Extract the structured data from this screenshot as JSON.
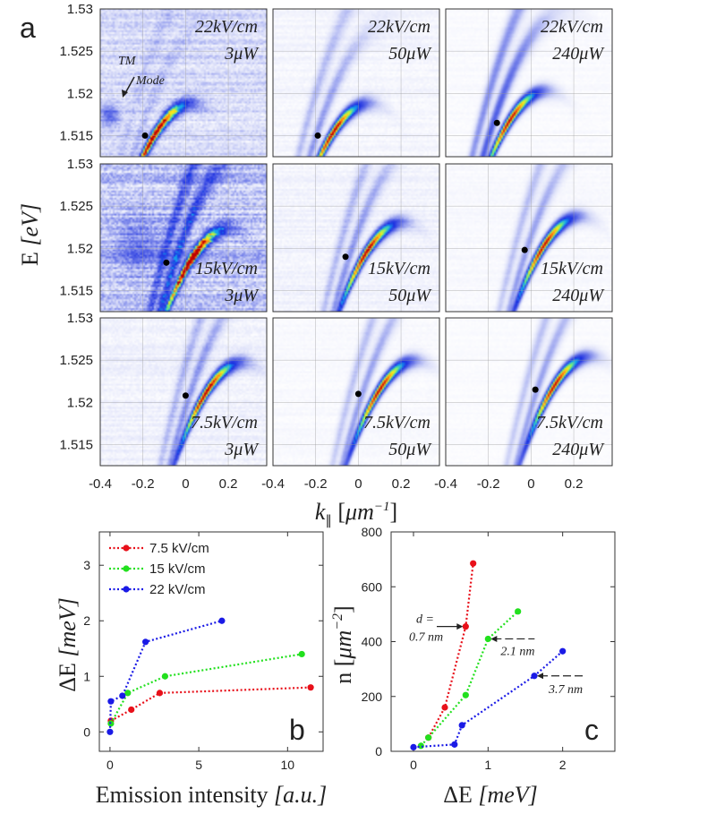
{
  "figure": {
    "panel_a_letter": "a",
    "panel_b_letter": "b",
    "panel_c_letter": "c"
  },
  "chart_data": [
    {
      "type": "heatmap",
      "panel": "a",
      "description_title": "Polariton dispersion images",
      "xlabel": "k_∥ [μm^-1]",
      "xlabel_main": "k",
      "xlabel_sub": "∥",
      "xlabel_unit_open": " [",
      "xlabel_unit": "μm",
      "xlabel_exp": "−1",
      "xlabel_unit_close": "]",
      "ylabel": "E [eV]",
      "ylabel_main": "E ",
      "ylabel_unit": "[eV]",
      "xlim": [
        -0.4,
        0.38
      ],
      "x_ticks": [
        "-0.4",
        "-0.2",
        "0",
        "0.2"
      ],
      "x_tick_values": [
        -0.4,
        -0.2,
        0,
        0.2
      ],
      "rows": [
        {
          "field": "22kV/cm",
          "ylim": [
            1.5125,
            1.53
          ],
          "y_ticks": [
            "1.53",
            "1.525",
            "1.52",
            "1.515"
          ],
          "y_tick_values": [
            1.53,
            1.525,
            1.52,
            1.515
          ],
          "panels": [
            {
              "power": "3μW",
              "marker_k": -0.19,
              "marker_E": 1.515,
              "k0": -0.12,
              "E0": 1.516
            },
            {
              "power": "50μW",
              "marker_k": -0.19,
              "marker_E": 1.515,
              "k0": -0.1,
              "E0": 1.516
            },
            {
              "power": "240μW",
              "marker_k": -0.16,
              "marker_E": 1.5165,
              "k0": -0.08,
              "E0": 1.5175
            }
          ]
        },
        {
          "field": "15kV/cm",
          "ylim": [
            1.5125,
            1.53
          ],
          "y_ticks": [
            "1.53",
            "1.525",
            "1.52",
            "1.515"
          ],
          "y_tick_values": [
            1.53,
            1.525,
            1.52,
            1.515
          ],
          "panels": [
            {
              "power": "3μW",
              "marker_k": -0.09,
              "marker_E": 1.5183,
              "k0": 0.05,
              "E0": 1.5195
            },
            {
              "power": "50μW",
              "marker_k": -0.06,
              "marker_E": 1.519,
              "k0": 0.06,
              "E0": 1.5203
            },
            {
              "power": "240μW",
              "marker_k": -0.03,
              "marker_E": 1.5198,
              "k0": 0.08,
              "E0": 1.521
            }
          ]
        },
        {
          "field": "7.5kV/cm",
          "ylim": [
            1.5125,
            1.53
          ],
          "y_ticks": [
            "1.53",
            "1.525",
            "1.52",
            "1.515"
          ],
          "y_tick_values": [
            1.53,
            1.525,
            1.52,
            1.515
          ],
          "panels": [
            {
              "power": "3μW",
              "marker_k": 0.0,
              "marker_E": 1.5208,
              "k0": 0.12,
              "E0": 1.522
            },
            {
              "power": "50μW",
              "marker_k": 0.0,
              "marker_E": 1.521,
              "k0": 0.12,
              "E0": 1.5222
            },
            {
              "power": "240μW",
              "marker_k": 0.02,
              "marker_E": 1.5215,
              "k0": 0.13,
              "E0": 1.5227
            }
          ]
        }
      ],
      "annotation": {
        "line1": "TM",
        "line2": "Mode"
      }
    },
    {
      "type": "line",
      "panel": "b",
      "xlabel": "Emission intensity [a.u.]",
      "xlabel_main": "Emission intensity ",
      "xlabel_unit": "[a.u.]",
      "ylabel": "ΔE [meV]",
      "ylabel_main": "ΔE ",
      "ylabel_unit": "[meV]",
      "xlim": [
        -0.6,
        12
      ],
      "ylim": [
        -0.35,
        3.6
      ],
      "x_ticks": [
        "0",
        "5",
        "10"
      ],
      "x_tick_values": [
        0,
        5,
        10
      ],
      "y_ticks": [
        "0",
        "1",
        "2",
        "3"
      ],
      "y_tick_values": [
        0,
        1,
        2,
        3
      ],
      "legend_position": "top-left",
      "series": [
        {
          "name": "7.5 kV/cm",
          "color": "#e8101a",
          "x": [
            0.05,
            1.2,
            2.8,
            11.3
          ],
          "y": [
            0.2,
            0.4,
            0.7,
            0.8
          ]
        },
        {
          "name": "15 kV/cm",
          "color": "#22e01e",
          "x": [
            0.05,
            1.0,
            3.1,
            10.8
          ],
          "y": [
            0.15,
            0.7,
            1.0,
            1.4
          ]
        },
        {
          "name": "22 kV/cm",
          "color": "#1a1ae6",
          "x": [
            0.0,
            0.05,
            0.7,
            2.0,
            6.3
          ],
          "y": [
            0.0,
            0.55,
            0.65,
            1.62,
            2.0
          ]
        }
      ]
    },
    {
      "type": "line",
      "panel": "c",
      "xlabel": "ΔE [meV]",
      "xlabel_main": "ΔE ",
      "xlabel_unit": "[meV]",
      "ylabel": "n [μm^-2]",
      "ylabel_main": "n ",
      "ylabel_unit_open": "[",
      "ylabel_unit": "μm",
      "ylabel_exp": "−2",
      "ylabel_unit_close": "]",
      "xlim": [
        -0.3,
        2.7
      ],
      "ylim": [
        0,
        800
      ],
      "x_ticks": [
        "0",
        "1",
        "2"
      ],
      "x_tick_values": [
        0,
        1,
        2
      ],
      "y_ticks": [
        "0",
        "200",
        "400",
        "600",
        "800"
      ],
      "y_tick_values": [
        0,
        200,
        400,
        600,
        800
      ],
      "series": [
        {
          "name": "7.5 kV/cm",
          "color": "#e8101a",
          "x": [
            0.2,
            0.42,
            0.7,
            0.8
          ],
          "y": [
            50,
            160,
            455,
            685
          ]
        },
        {
          "name": "15 kV/cm",
          "color": "#22e01e",
          "x": [
            0.1,
            0.2,
            0.7,
            1.0,
            1.4
          ],
          "y": [
            20,
            50,
            205,
            410,
            510
          ]
        },
        {
          "name": "22 kV/cm",
          "color": "#1a1ae6",
          "x": [
            0.0,
            0.55,
            0.65,
            1.62,
            2.0
          ],
          "y": [
            15,
            25,
            95,
            275,
            365
          ]
        }
      ],
      "annotations": [
        {
          "line1": "d =",
          "line2": "0.7 nm",
          "x": 0.7,
          "y": 455
        },
        {
          "line1": "2.1 nm",
          "line2": "",
          "x": 1.0,
          "y": 410
        },
        {
          "line1": "3.7 nm",
          "line2": "",
          "x": 1.62,
          "y": 275
        }
      ]
    }
  ]
}
